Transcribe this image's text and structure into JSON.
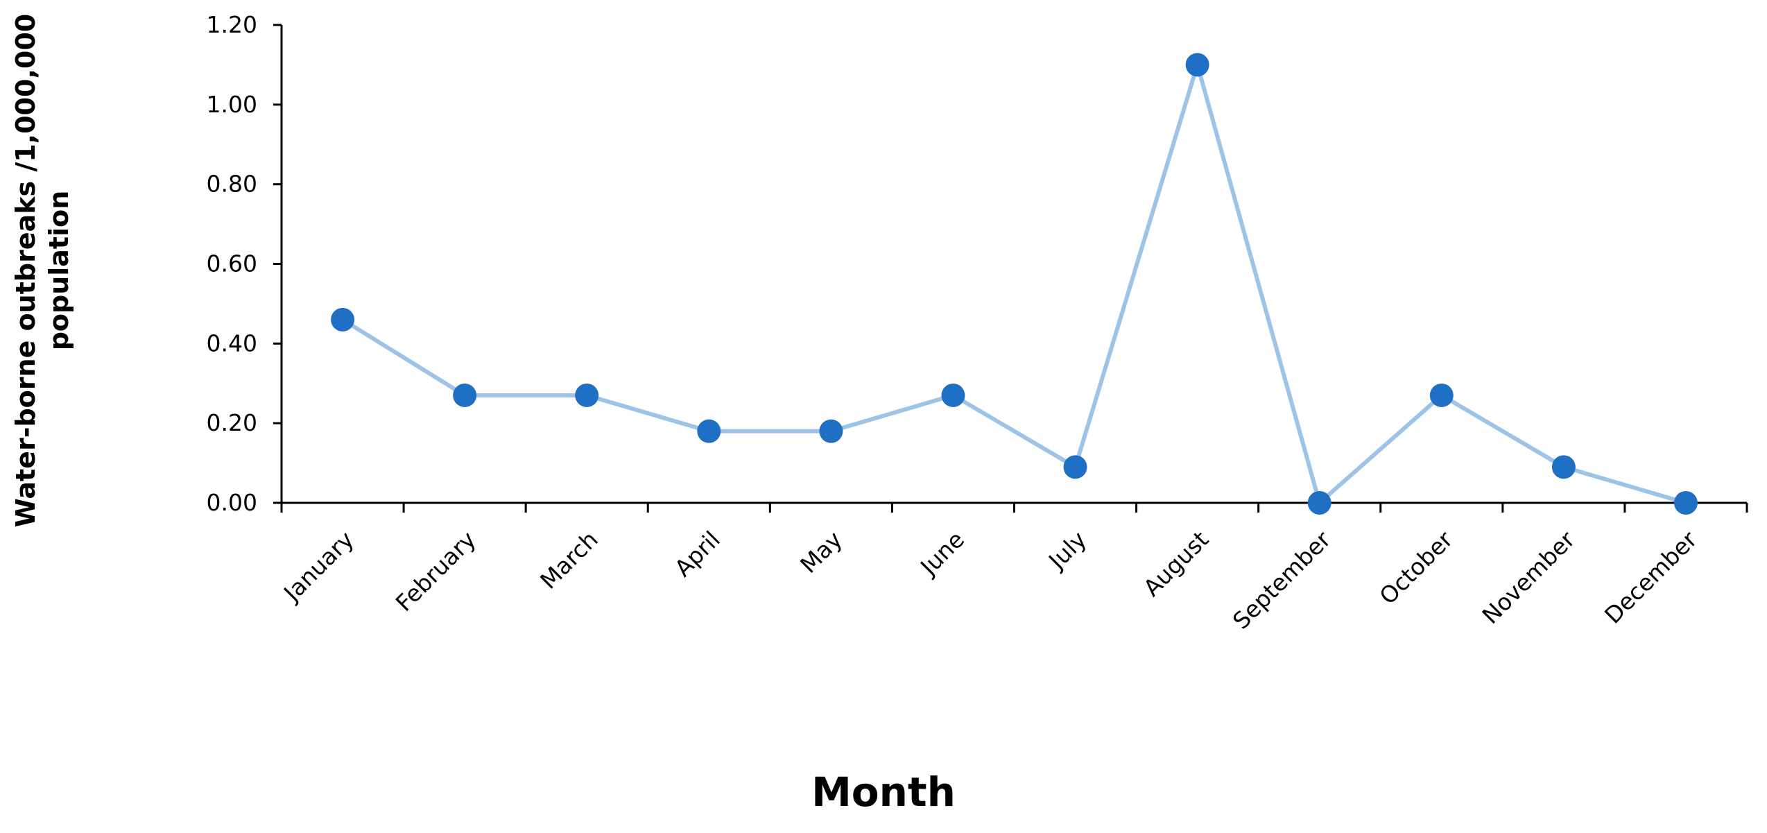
{
  "chart_data": {
    "type": "line",
    "x_label": "Month",
    "y_label": [
      "Water-borne outbreaks /1,000,000",
      "population"
    ],
    "categories": [
      "January",
      "February",
      "March",
      "April",
      "May",
      "June",
      "July",
      "August",
      "September",
      "October",
      "November",
      "December"
    ],
    "series": [
      {
        "color": "#1f6fc5",
        "line_color": "#9dc3e6",
        "values": [
          0.46,
          0.27,
          0.27,
          0.18,
          0.18,
          0.27,
          0.09,
          1.1,
          0,
          0.27,
          0.09,
          0
        ]
      }
    ],
    "ylim": [
      0,
      1.2
    ],
    "yticks": [
      {
        "value": 0,
        "label": "0.00"
      },
      {
        "value": 0.2,
        "label": "0.20"
      },
      {
        "value": 0.4,
        "label": "0.40"
      },
      {
        "value": 0.6,
        "label": "0.60"
      },
      {
        "value": 0.8,
        "label": "0.80"
      },
      {
        "value": 1.0,
        "label": "1.00"
      },
      {
        "value": 1.2,
        "label": "1.20"
      }
    ]
  }
}
